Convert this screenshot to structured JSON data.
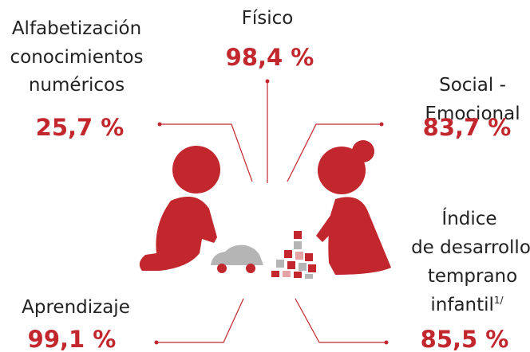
{
  "items": [
    {
      "label": [
        "Físico"
      ],
      "value": "98,4 %"
    },
    {
      "label": [
        "Alfabetización",
        "conocimientos",
        "numéricos"
      ],
      "value": "25,7 %"
    },
    {
      "label": [
        "Social -",
        "Emocional"
      ],
      "value": "83,7 %"
    },
    {
      "label": [
        "Índice",
        "de desarrollo",
        "temprano",
        "infantil"
      ],
      "label_note": "1/",
      "value": "85,5 %"
    },
    {
      "label": [
        "Aprendizaje"
      ],
      "value": "99,1 %"
    }
  ]
}
